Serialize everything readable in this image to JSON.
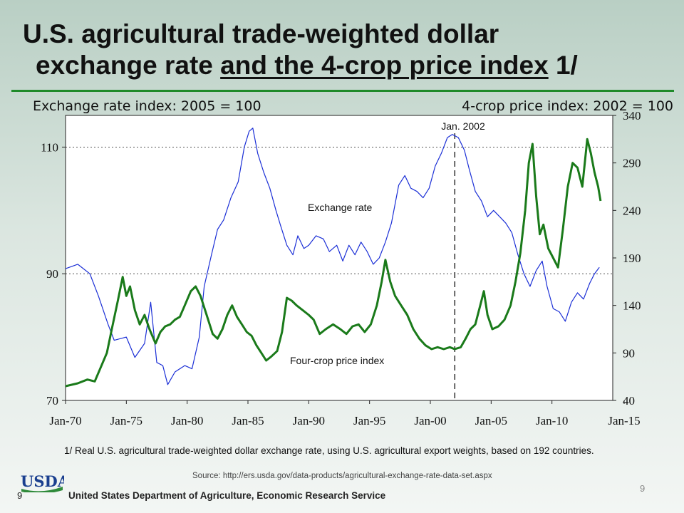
{
  "slide": {
    "title_part1": "U.S. agricultural trade-weighted dollar",
    "title_part2_plain": "exchange rate ",
    "title_part2_underlined": "and the 4-crop price index",
    "title_part2_suffix": " 1/",
    "footnote": "1/ Real U.S. agricultural trade-weighted dollar exchange rate, using U.S. agricultural export weights, based on 192 countries.",
    "source": "Source:  http://ers.usda.gov/data-products/agricultural-exchange-rate-data-set.aspx",
    "org_name": "United States Department of Agriculture, Economic Research Service",
    "logo_text": "USDA",
    "page_number_left": "9",
    "page_number_right": "9"
  },
  "colors": {
    "exchange_rate": "#1b2fd6",
    "crop_index": "#1a7a1a",
    "accent_rule": "#1f8a2a",
    "logo_blue": "#1b3f8f",
    "logo_green": "#2f8a3a"
  },
  "chart_data": {
    "type": "line",
    "left_axis_title": "Exchange rate index:  2005 = 100",
    "right_axis_title": "4-crop price index:  2002 = 100",
    "x_ticks": [
      "Jan-70",
      "Jan-75",
      "Jan-80",
      "Jan-85",
      "Jan-90",
      "Jan-95",
      "Jan-00",
      "Jan-05",
      "Jan-10",
      "Jan-15"
    ],
    "x_range": [
      1970,
      2015
    ],
    "left_ylim": [
      70,
      115
    ],
    "left_ticks": [
      70,
      90,
      110
    ],
    "right_ylim": [
      40,
      340
    ],
    "right_ticks": [
      40,
      90,
      140,
      190,
      240,
      290,
      340
    ],
    "gridlines": [
      {
        "axis": "left",
        "value": 110
      },
      {
        "axis": "left",
        "value": 90
      }
    ],
    "reference_line": {
      "x": 2002.0,
      "label": "Jan. 2002"
    },
    "annotations": [
      {
        "text": "Exchange rate",
        "series": "exchange"
      },
      {
        "text": "Four-crop price index",
        "series": "crop"
      }
    ],
    "series": [
      {
        "name": "Exchange rate",
        "axis": "left",
        "points": [
          [
            1970.0,
            90.8
          ],
          [
            1971.0,
            91.5
          ],
          [
            1972.0,
            90.0
          ],
          [
            1972.7,
            86.5
          ],
          [
            1973.5,
            82.0
          ],
          [
            1974.0,
            79.5
          ],
          [
            1975.0,
            80.0
          ],
          [
            1975.7,
            76.8
          ],
          [
            1976.5,
            79.0
          ],
          [
            1977.0,
            85.5
          ],
          [
            1977.5,
            76.0
          ],
          [
            1978.0,
            75.5
          ],
          [
            1978.4,
            72.5
          ],
          [
            1979.0,
            74.5
          ],
          [
            1979.8,
            75.5
          ],
          [
            1980.4,
            75.0
          ],
          [
            1981.0,
            80.0
          ],
          [
            1981.4,
            88.0
          ],
          [
            1982.0,
            93.0
          ],
          [
            1982.5,
            97.0
          ],
          [
            1983.0,
            98.5
          ],
          [
            1983.6,
            102.0
          ],
          [
            1984.2,
            104.5
          ],
          [
            1984.7,
            110.0
          ],
          [
            1985.1,
            112.5
          ],
          [
            1985.4,
            113.0
          ],
          [
            1985.8,
            109.0
          ],
          [
            1986.3,
            106.0
          ],
          [
            1986.8,
            103.5
          ],
          [
            1987.3,
            100.0
          ],
          [
            1987.7,
            97.5
          ],
          [
            1988.2,
            94.5
          ],
          [
            1988.7,
            93.0
          ],
          [
            1989.1,
            96.0
          ],
          [
            1989.6,
            94.0
          ],
          [
            1990.0,
            94.5
          ],
          [
            1990.6,
            96.0
          ],
          [
            1991.2,
            95.5
          ],
          [
            1991.7,
            93.5
          ],
          [
            1992.3,
            94.5
          ],
          [
            1992.8,
            92.0
          ],
          [
            1993.3,
            94.5
          ],
          [
            1993.8,
            93.0
          ],
          [
            1994.3,
            95.0
          ],
          [
            1994.8,
            93.5
          ],
          [
            1995.3,
            91.5
          ],
          [
            1995.8,
            92.5
          ],
          [
            1996.3,
            95.0
          ],
          [
            1996.8,
            98.0
          ],
          [
            1997.4,
            104.0
          ],
          [
            1997.9,
            105.5
          ],
          [
            1998.4,
            103.5
          ],
          [
            1998.9,
            103.0
          ],
          [
            1999.4,
            102.0
          ],
          [
            1999.9,
            103.5
          ],
          [
            2000.4,
            107.0
          ],
          [
            2000.9,
            109.0
          ],
          [
            2001.4,
            111.5
          ],
          [
            2001.8,
            112.0
          ],
          [
            2002.3,
            111.5
          ],
          [
            2002.8,
            109.5
          ],
          [
            2003.2,
            106.5
          ],
          [
            2003.7,
            103.0
          ],
          [
            2004.2,
            101.5
          ],
          [
            2004.7,
            99.0
          ],
          [
            2005.2,
            100.0
          ],
          [
            2005.7,
            99.0
          ],
          [
            2006.2,
            98.0
          ],
          [
            2006.7,
            96.5
          ],
          [
            2007.2,
            93.0
          ],
          [
            2007.7,
            90.0
          ],
          [
            2008.2,
            88.0
          ],
          [
            2008.7,
            90.5
          ],
          [
            2009.2,
            92.0
          ],
          [
            2009.6,
            88.0
          ],
          [
            2010.1,
            84.5
          ],
          [
            2010.6,
            84.0
          ],
          [
            2011.1,
            82.5
          ],
          [
            2011.6,
            85.5
          ],
          [
            2012.1,
            87.0
          ],
          [
            2012.6,
            86.0
          ],
          [
            2013.1,
            88.5
          ],
          [
            2013.5,
            90.0
          ],
          [
            2013.9,
            91.0
          ]
        ]
      },
      {
        "name": "Four-crop price index",
        "axis": "right",
        "points": [
          [
            1970.0,
            55
          ],
          [
            1971.0,
            58
          ],
          [
            1971.8,
            62
          ],
          [
            1972.4,
            60
          ],
          [
            1972.9,
            75
          ],
          [
            1973.4,
            90
          ],
          [
            1973.8,
            115
          ],
          [
            1974.3,
            145
          ],
          [
            1974.7,
            170
          ],
          [
            1975.0,
            150
          ],
          [
            1975.3,
            160
          ],
          [
            1975.7,
            135
          ],
          [
            1976.1,
            120
          ],
          [
            1976.5,
            130
          ],
          [
            1976.9,
            115
          ],
          [
            1977.4,
            100
          ],
          [
            1977.8,
            112
          ],
          [
            1978.2,
            118
          ],
          [
            1978.6,
            120
          ],
          [
            1979.0,
            125
          ],
          [
            1979.4,
            128
          ],
          [
            1979.8,
            140
          ],
          [
            1980.3,
            155
          ],
          [
            1980.7,
            160
          ],
          [
            1981.1,
            150
          ],
          [
            1981.6,
            130
          ],
          [
            1982.1,
            110
          ],
          [
            1982.5,
            105
          ],
          [
            1982.9,
            115
          ],
          [
            1983.3,
            130
          ],
          [
            1983.7,
            140
          ],
          [
            1984.1,
            128
          ],
          [
            1984.5,
            120
          ],
          [
            1984.9,
            112
          ],
          [
            1985.3,
            108
          ],
          [
            1985.7,
            98
          ],
          [
            1986.1,
            90
          ],
          [
            1986.5,
            82
          ],
          [
            1986.9,
            86
          ],
          [
            1987.4,
            92
          ],
          [
            1987.8,
            112
          ],
          [
            1988.2,
            148
          ],
          [
            1988.6,
            145
          ],
          [
            1989.0,
            140
          ],
          [
            1989.5,
            135
          ],
          [
            1990.0,
            130
          ],
          [
            1990.4,
            125
          ],
          [
            1990.9,
            110
          ],
          [
            1991.4,
            115
          ],
          [
            1992.0,
            120
          ],
          [
            1992.6,
            115
          ],
          [
            1993.1,
            110
          ],
          [
            1993.6,
            118
          ],
          [
            1994.1,
            120
          ],
          [
            1994.6,
            112
          ],
          [
            1995.1,
            120
          ],
          [
            1995.6,
            140
          ],
          [
            1996.0,
            165
          ],
          [
            1996.3,
            188
          ],
          [
            1996.7,
            165
          ],
          [
            1997.1,
            150
          ],
          [
            1997.6,
            140
          ],
          [
            1998.1,
            130
          ],
          [
            1998.6,
            115
          ],
          [
            1999.1,
            105
          ],
          [
            1999.6,
            98
          ],
          [
            2000.1,
            94
          ],
          [
            2000.6,
            96
          ],
          [
            2001.1,
            94
          ],
          [
            2001.6,
            96
          ],
          [
            2002.0,
            94
          ],
          [
            2002.5,
            96
          ],
          [
            2002.9,
            105
          ],
          [
            2003.3,
            115
          ],
          [
            2003.7,
            120
          ],
          [
            2004.1,
            140
          ],
          [
            2004.4,
            155
          ],
          [
            2004.7,
            130
          ],
          [
            2005.1,
            115
          ],
          [
            2005.6,
            118
          ],
          [
            2006.1,
            125
          ],
          [
            2006.6,
            140
          ],
          [
            2007.0,
            165
          ],
          [
            2007.4,
            195
          ],
          [
            2007.8,
            240
          ],
          [
            2008.1,
            290
          ],
          [
            2008.4,
            310
          ],
          [
            2008.7,
            255
          ],
          [
            2009.0,
            215
          ],
          [
            2009.3,
            225
          ],
          [
            2009.7,
            200
          ],
          [
            2010.1,
            190
          ],
          [
            2010.5,
            180
          ],
          [
            2010.9,
            220
          ],
          [
            2011.3,
            265
          ],
          [
            2011.7,
            290
          ],
          [
            2012.1,
            285
          ],
          [
            2012.5,
            265
          ],
          [
            2012.9,
            315
          ],
          [
            2013.2,
            300
          ],
          [
            2013.5,
            280
          ],
          [
            2013.8,
            265
          ],
          [
            2014.0,
            250
          ]
        ]
      }
    ]
  }
}
